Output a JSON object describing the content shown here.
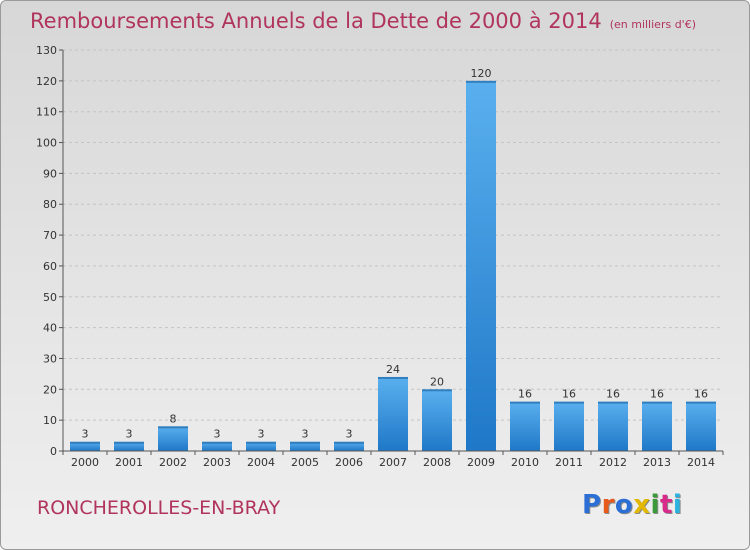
{
  "title": "Remboursements Annuels de la Dette de 2000 à 2014",
  "unit_note": "(en milliers d'€)",
  "commune": "RONCHEROLLES-EN-BRAY",
  "logo": {
    "text": "Proxiti",
    "colors": [
      "#2b6fd6",
      "#e85a1c",
      "#2b6fd6",
      "#e3b800",
      "#3a9a3a",
      "#d82a8a",
      "#2bb3e0"
    ]
  },
  "colors": {
    "title": "#b0345c",
    "bar": "#4aa3e6",
    "bar_dark": "#1f78c8",
    "axis": "#555555",
    "grid": "#bdbdbd"
  },
  "chart_data": {
    "type": "bar",
    "categories": [
      "2000",
      "2001",
      "2002",
      "2003",
      "2004",
      "2005",
      "2006",
      "2007",
      "2008",
      "2009",
      "2010",
      "2011",
      "2012",
      "2013",
      "2014"
    ],
    "values": [
      3,
      3,
      8,
      3,
      3,
      3,
      3,
      24,
      20,
      120,
      16,
      16,
      16,
      16,
      16
    ],
    "ylim": [
      0,
      130
    ],
    "yticks": [
      0,
      10,
      20,
      30,
      40,
      50,
      60,
      70,
      80,
      90,
      100,
      110,
      120,
      130
    ],
    "grid": true,
    "data_labels": true
  }
}
